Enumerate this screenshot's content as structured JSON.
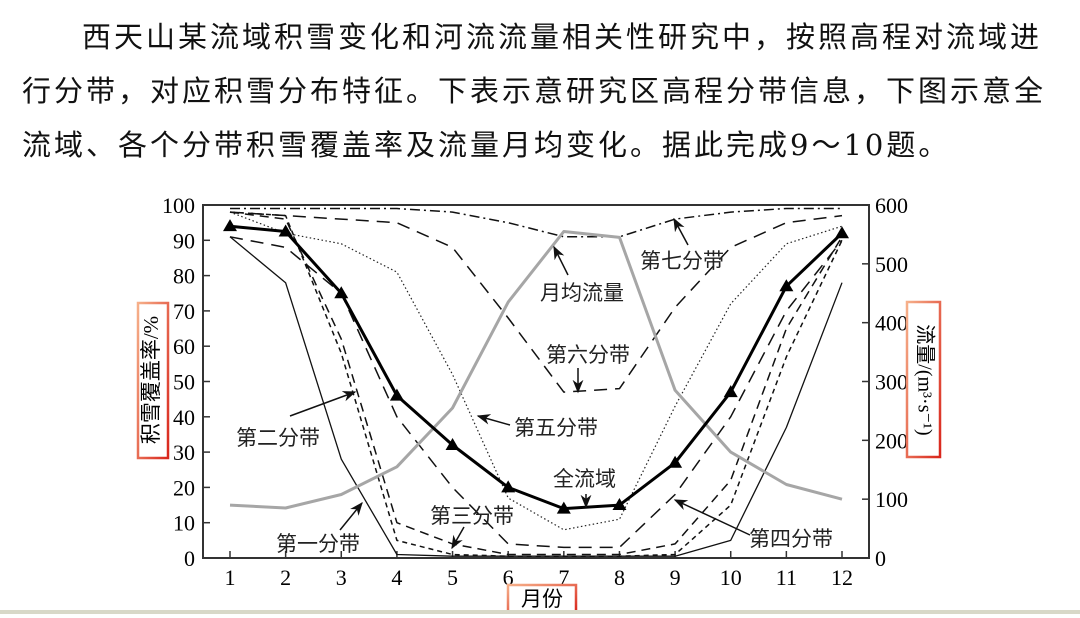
{
  "passage": {
    "lines": [
      "西天山某流域积雪变化和河流流量相关性研究中，按照高程对流域进",
      "行分带，对应积雪分布特征。下表示意研究区高程分带信息，下图示意全",
      "流域、各个分带积雪覆盖率及流量月均变化。据此完成9～10题。"
    ]
  },
  "chart_data": {
    "type": "line",
    "title": "",
    "xlabel": "月份",
    "ylabel": "积雪覆盖率/%",
    "y2label": "流量/(m³·s⁻¹)",
    "x": [
      1,
      2,
      3,
      4,
      5,
      6,
      7,
      8,
      9,
      10,
      11,
      12
    ],
    "xticks": [
      "1",
      "2",
      "3",
      "4",
      "5",
      "6",
      "7",
      "8",
      "9",
      "10",
      "11",
      "12"
    ],
    "ylim": [
      0,
      100
    ],
    "yticks": [
      "0",
      "10",
      "20",
      "30",
      "40",
      "50",
      "60",
      "70",
      "80",
      "90",
      "100"
    ],
    "y2lim": [
      0,
      600
    ],
    "y2ticks": [
      "0",
      "100",
      "200",
      "300",
      "400",
      "500",
      "600"
    ],
    "grid": false,
    "legend": "inline annotations with arrows",
    "series": [
      {
        "name": "全流域",
        "axis": "left",
        "style": "bold-triangle",
        "values": [
          94,
          92.5,
          75,
          46,
          32,
          20,
          14,
          15,
          27,
          47,
          77,
          92
        ]
      },
      {
        "name": "第一分带",
        "axis": "left",
        "style": "thin-solid",
        "values": [
          91,
          78,
          28,
          1,
          0.5,
          0.5,
          0.5,
          0.5,
          0.5,
          5,
          37,
          78
        ]
      },
      {
        "name": "第二分带",
        "axis": "left",
        "style": "short-dash",
        "values": [
          98,
          97,
          58,
          5,
          1,
          0.5,
          0.5,
          0.5,
          1,
          15,
          57,
          90
        ]
      },
      {
        "name": "第三分带",
        "axis": "left",
        "style": "dash",
        "values": [
          98,
          96,
          62,
          10,
          4,
          1,
          1,
          1,
          4,
          22,
          65,
          91
        ]
      },
      {
        "name": "第四分带",
        "axis": "left",
        "style": "long-dash",
        "values": [
          91,
          88,
          75,
          40,
          20,
          4,
          3,
          3,
          18,
          40,
          70,
          90
        ]
      },
      {
        "name": "第五分带",
        "axis": "left",
        "style": "dotted",
        "values": [
          98,
          92,
          89,
          81,
          52,
          17,
          8,
          11,
          43,
          72,
          89,
          94
        ]
      },
      {
        "name": "第六分带",
        "axis": "left",
        "style": "long-dash",
        "values": [
          98,
          97,
          96,
          95,
          88,
          68,
          47,
          48,
          71,
          88,
          95,
          97
        ]
      },
      {
        "name": "第七分带",
        "axis": "left",
        "style": "dash-dot",
        "values": [
          99,
          99,
          99,
          99,
          98,
          95,
          91,
          91,
          96,
          98,
          99,
          99
        ]
      },
      {
        "name": "月均流量",
        "axis": "right",
        "style": "gray-solid",
        "unit": "m³/s",
        "values": [
          90,
          85,
          108,
          155,
          255,
          435,
          555,
          545,
          285,
          180,
          125,
          100
        ]
      }
    ],
    "annotations": [
      {
        "text": "第七分带",
        "target_month": 9
      },
      {
        "text": "月均流量",
        "target_month": 7
      },
      {
        "text": "第六分带",
        "target_month": 7
      },
      {
        "text": "第五分带",
        "target_month": 6
      },
      {
        "text": "全流域",
        "target_month": 7.5
      },
      {
        "text": "第二分带",
        "target_month": 3.3
      },
      {
        "text": "第三分带",
        "target_month": 5
      },
      {
        "text": "第一分带",
        "target_month": 3.5
      },
      {
        "text": "第四分带",
        "target_month": 9
      }
    ],
    "colors": {
      "axis": "#333333",
      "line": "#111111",
      "flow": "#a6a6a6",
      "label_box_border": "#d9261c",
      "label_box_fade": "#f4a582"
    }
  }
}
